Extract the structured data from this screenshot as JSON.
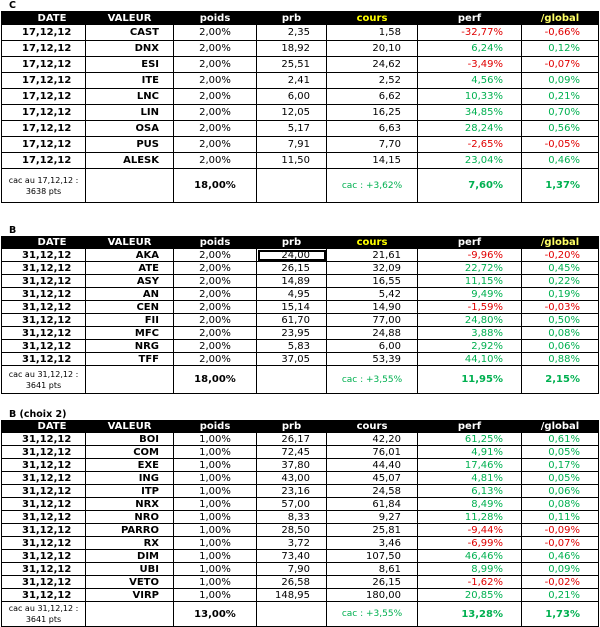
{
  "headers": {
    "date": "DATE",
    "valeur": "VALEUR",
    "poids": "poids",
    "prb": "prb",
    "cours": "cours",
    "perf": "perf",
    "global": "/global"
  },
  "sections": [
    {
      "title": "C",
      "rows": [
        {
          "date": "17,12,12",
          "valeur": "CAST",
          "poids": "2,00%",
          "prb": "2,35",
          "cours": "1,58",
          "perf": "-32,77%",
          "global": "-0,66%",
          "sign": "neg"
        },
        {
          "date": "17,12,12",
          "valeur": "DNX",
          "poids": "2,00%",
          "prb": "18,92",
          "cours": "20,10",
          "perf": "6,24%",
          "global": "0,12%",
          "sign": "pos"
        },
        {
          "date": "17,12,12",
          "valeur": "ESI",
          "poids": "2,00%",
          "prb": "25,51",
          "cours": "24,62",
          "perf": "-3,49%",
          "global": "-0,07%",
          "sign": "neg"
        },
        {
          "date": "17,12,12",
          "valeur": "ITE",
          "poids": "2,00%",
          "prb": "2,41",
          "cours": "2,52",
          "perf": "4,56%",
          "global": "0,09%",
          "sign": "pos"
        },
        {
          "date": "17,12,12",
          "valeur": "LNC",
          "poids": "2,00%",
          "prb": "6,00",
          "cours": "6,62",
          "perf": "10,33%",
          "global": "0,21%",
          "sign": "pos"
        },
        {
          "date": "17,12,12",
          "valeur": "LIN",
          "poids": "2,00%",
          "prb": "12,05",
          "cours": "16,25",
          "perf": "34,85%",
          "global": "0,70%",
          "sign": "pos"
        },
        {
          "date": "17,12,12",
          "valeur": "OSA",
          "poids": "2,00%",
          "prb": "5,17",
          "cours": "6,63",
          "perf": "28,24%",
          "global": "0,56%",
          "sign": "pos"
        },
        {
          "date": "17,12,12",
          "valeur": "PUS",
          "poids": "2,00%",
          "prb": "7,91",
          "cours": "7,70",
          "perf": "-2,65%",
          "global": "-0,05%",
          "sign": "neg"
        },
        {
          "date": "17,12,12",
          "valeur": "ALESK",
          "poids": "2,00%",
          "prb": "11,50",
          "cours": "14,15",
          "perf": "23,04%",
          "global": "0,46%",
          "sign": "pos"
        }
      ],
      "summary": {
        "cac_label": "cac au 17,12,12 : 3638 pts",
        "poids": "18,00%",
        "cac_perf": "cac : +3,62%",
        "perf": "7,60%",
        "global": "1,37%"
      }
    },
    {
      "title": "B",
      "rows": [
        {
          "date": "31,12,12",
          "valeur": "AKA",
          "poids": "2,00%",
          "prb": "24,00",
          "cours": "21,61",
          "perf": "-9,96%",
          "global": "-0,20%",
          "sign": "neg"
        },
        {
          "date": "31,12,12",
          "valeur": "ATE",
          "poids": "2,00%",
          "prb": "26,15",
          "cours": "32,09",
          "perf": "22,72%",
          "global": "0,45%",
          "sign": "pos"
        },
        {
          "date": "31,12,12",
          "valeur": "ASY",
          "poids": "2,00%",
          "prb": "14,89",
          "cours": "16,55",
          "perf": "11,15%",
          "global": "0,22%",
          "sign": "pos"
        },
        {
          "date": "31,12,12",
          "valeur": "AN",
          "poids": "2,00%",
          "prb": "4,95",
          "cours": "5,42",
          "perf": "9,49%",
          "global": "0,19%",
          "sign": "pos"
        },
        {
          "date": "31,12,12",
          "valeur": "CEN",
          "poids": "2,00%",
          "prb": "15,14",
          "cours": "14,90",
          "perf": "-1,59%",
          "global": "-0,03%",
          "sign": "neg"
        },
        {
          "date": "31,12,12",
          "valeur": "FII",
          "poids": "2,00%",
          "prb": "61,70",
          "cours": "77,00",
          "perf": "24,80%",
          "global": "0,50%",
          "sign": "pos"
        },
        {
          "date": "31,12,12",
          "valeur": "MFC",
          "poids": "2,00%",
          "prb": "23,95",
          "cours": "24,88",
          "perf": "3,88%",
          "global": "0,08%",
          "sign": "pos"
        },
        {
          "date": "31,12,12",
          "valeur": "NRG",
          "poids": "2,00%",
          "prb": "5,83",
          "cours": "6,00",
          "perf": "2,92%",
          "global": "0,06%",
          "sign": "pos"
        },
        {
          "date": "31,12,12",
          "valeur": "TFF",
          "poids": "2,00%",
          "prb": "37,05",
          "cours": "53,39",
          "perf": "44,10%",
          "global": "0,88%",
          "sign": "pos"
        }
      ],
      "summary": {
        "cac_label": "cac au 31,12,12 : 3641 pts",
        "poids": "18,00%",
        "cac_perf": "cac : +3,55%",
        "perf": "11,95%",
        "global": "2,15%"
      }
    },
    {
      "title": "B (choix 2)",
      "rows": [
        {
          "date": "31,12,12",
          "valeur": "BOI",
          "poids": "1,00%",
          "prb": "26,17",
          "cours": "42,20",
          "perf": "61,25%",
          "global": "0,61%",
          "sign": "pos"
        },
        {
          "date": "31,12,12",
          "valeur": "COM",
          "poids": "1,00%",
          "prb": "72,45",
          "cours": "76,01",
          "perf": "4,91%",
          "global": "0,05%",
          "sign": "pos"
        },
        {
          "date": "31,12,12",
          "valeur": "EXE",
          "poids": "1,00%",
          "prb": "37,80",
          "cours": "44,40",
          "perf": "17,46%",
          "global": "0,17%",
          "sign": "pos"
        },
        {
          "date": "31,12,12",
          "valeur": "ING",
          "poids": "1,00%",
          "prb": "43,00",
          "cours": "45,07",
          "perf": "4,81%",
          "global": "0,05%",
          "sign": "pos"
        },
        {
          "date": "31,12,12",
          "valeur": "ITP",
          "poids": "1,00%",
          "prb": "23,16",
          "cours": "24,58",
          "perf": "6,13%",
          "global": "0,06%",
          "sign": "pos"
        },
        {
          "date": "31,12,12",
          "valeur": "NRX",
          "poids": "1,00%",
          "prb": "57,00",
          "cours": "61,84",
          "perf": "8,49%",
          "global": "0,08%",
          "sign": "pos"
        },
        {
          "date": "31,12,12",
          "valeur": "NRO",
          "poids": "1,00%",
          "prb": "8,33",
          "cours": "9,27",
          "perf": "11,28%",
          "global": "0,11%",
          "sign": "pos"
        },
        {
          "date": "31,12,12",
          "valeur": "PARRO",
          "poids": "1,00%",
          "prb": "28,50",
          "cours": "25,81",
          "perf": "-9,44%",
          "global": "-0,09%",
          "sign": "neg"
        },
        {
          "date": "31,12,12",
          "valeur": "RX",
          "poids": "1,00%",
          "prb": "3,72",
          "cours": "3,46",
          "perf": "-6,99%",
          "global": "-0,07%",
          "sign": "neg"
        },
        {
          "date": "31,12,12",
          "valeur": "DIM",
          "poids": "1,00%",
          "prb": "73,40",
          "cours": "107,50",
          "perf": "46,46%",
          "global": "0,46%",
          "sign": "pos"
        },
        {
          "date": "31,12,12",
          "valeur": "UBI",
          "poids": "1,00%",
          "prb": "7,90",
          "cours": "8,61",
          "perf": "8,99%",
          "global": "0,09%",
          "sign": "pos"
        },
        {
          "date": "31,12,12",
          "valeur": "VETO",
          "poids": "1,00%",
          "prb": "26,58",
          "cours": "26,15",
          "perf": "-1,62%",
          "global": "-0,02%",
          "sign": "neg"
        },
        {
          "date": "31,12,12",
          "valeur": "VIRP",
          "poids": "1,00%",
          "prb": "148,95",
          "cours": "180,00",
          "perf": "20,85%",
          "global": "0,21%",
          "sign": "pos"
        }
      ],
      "summary": {
        "cac_label": "cac au 31,12,12 : 3641 pts",
        "poids": "13,00%",
        "cac_perf": "cac : +3,55%",
        "perf": "13,28%",
        "global": "1,73%"
      }
    }
  ],
  "colors": {
    "positive": "#00b050",
    "negative": "#e00000",
    "header_bg": "#000000",
    "cours_header": "#ffff00"
  }
}
